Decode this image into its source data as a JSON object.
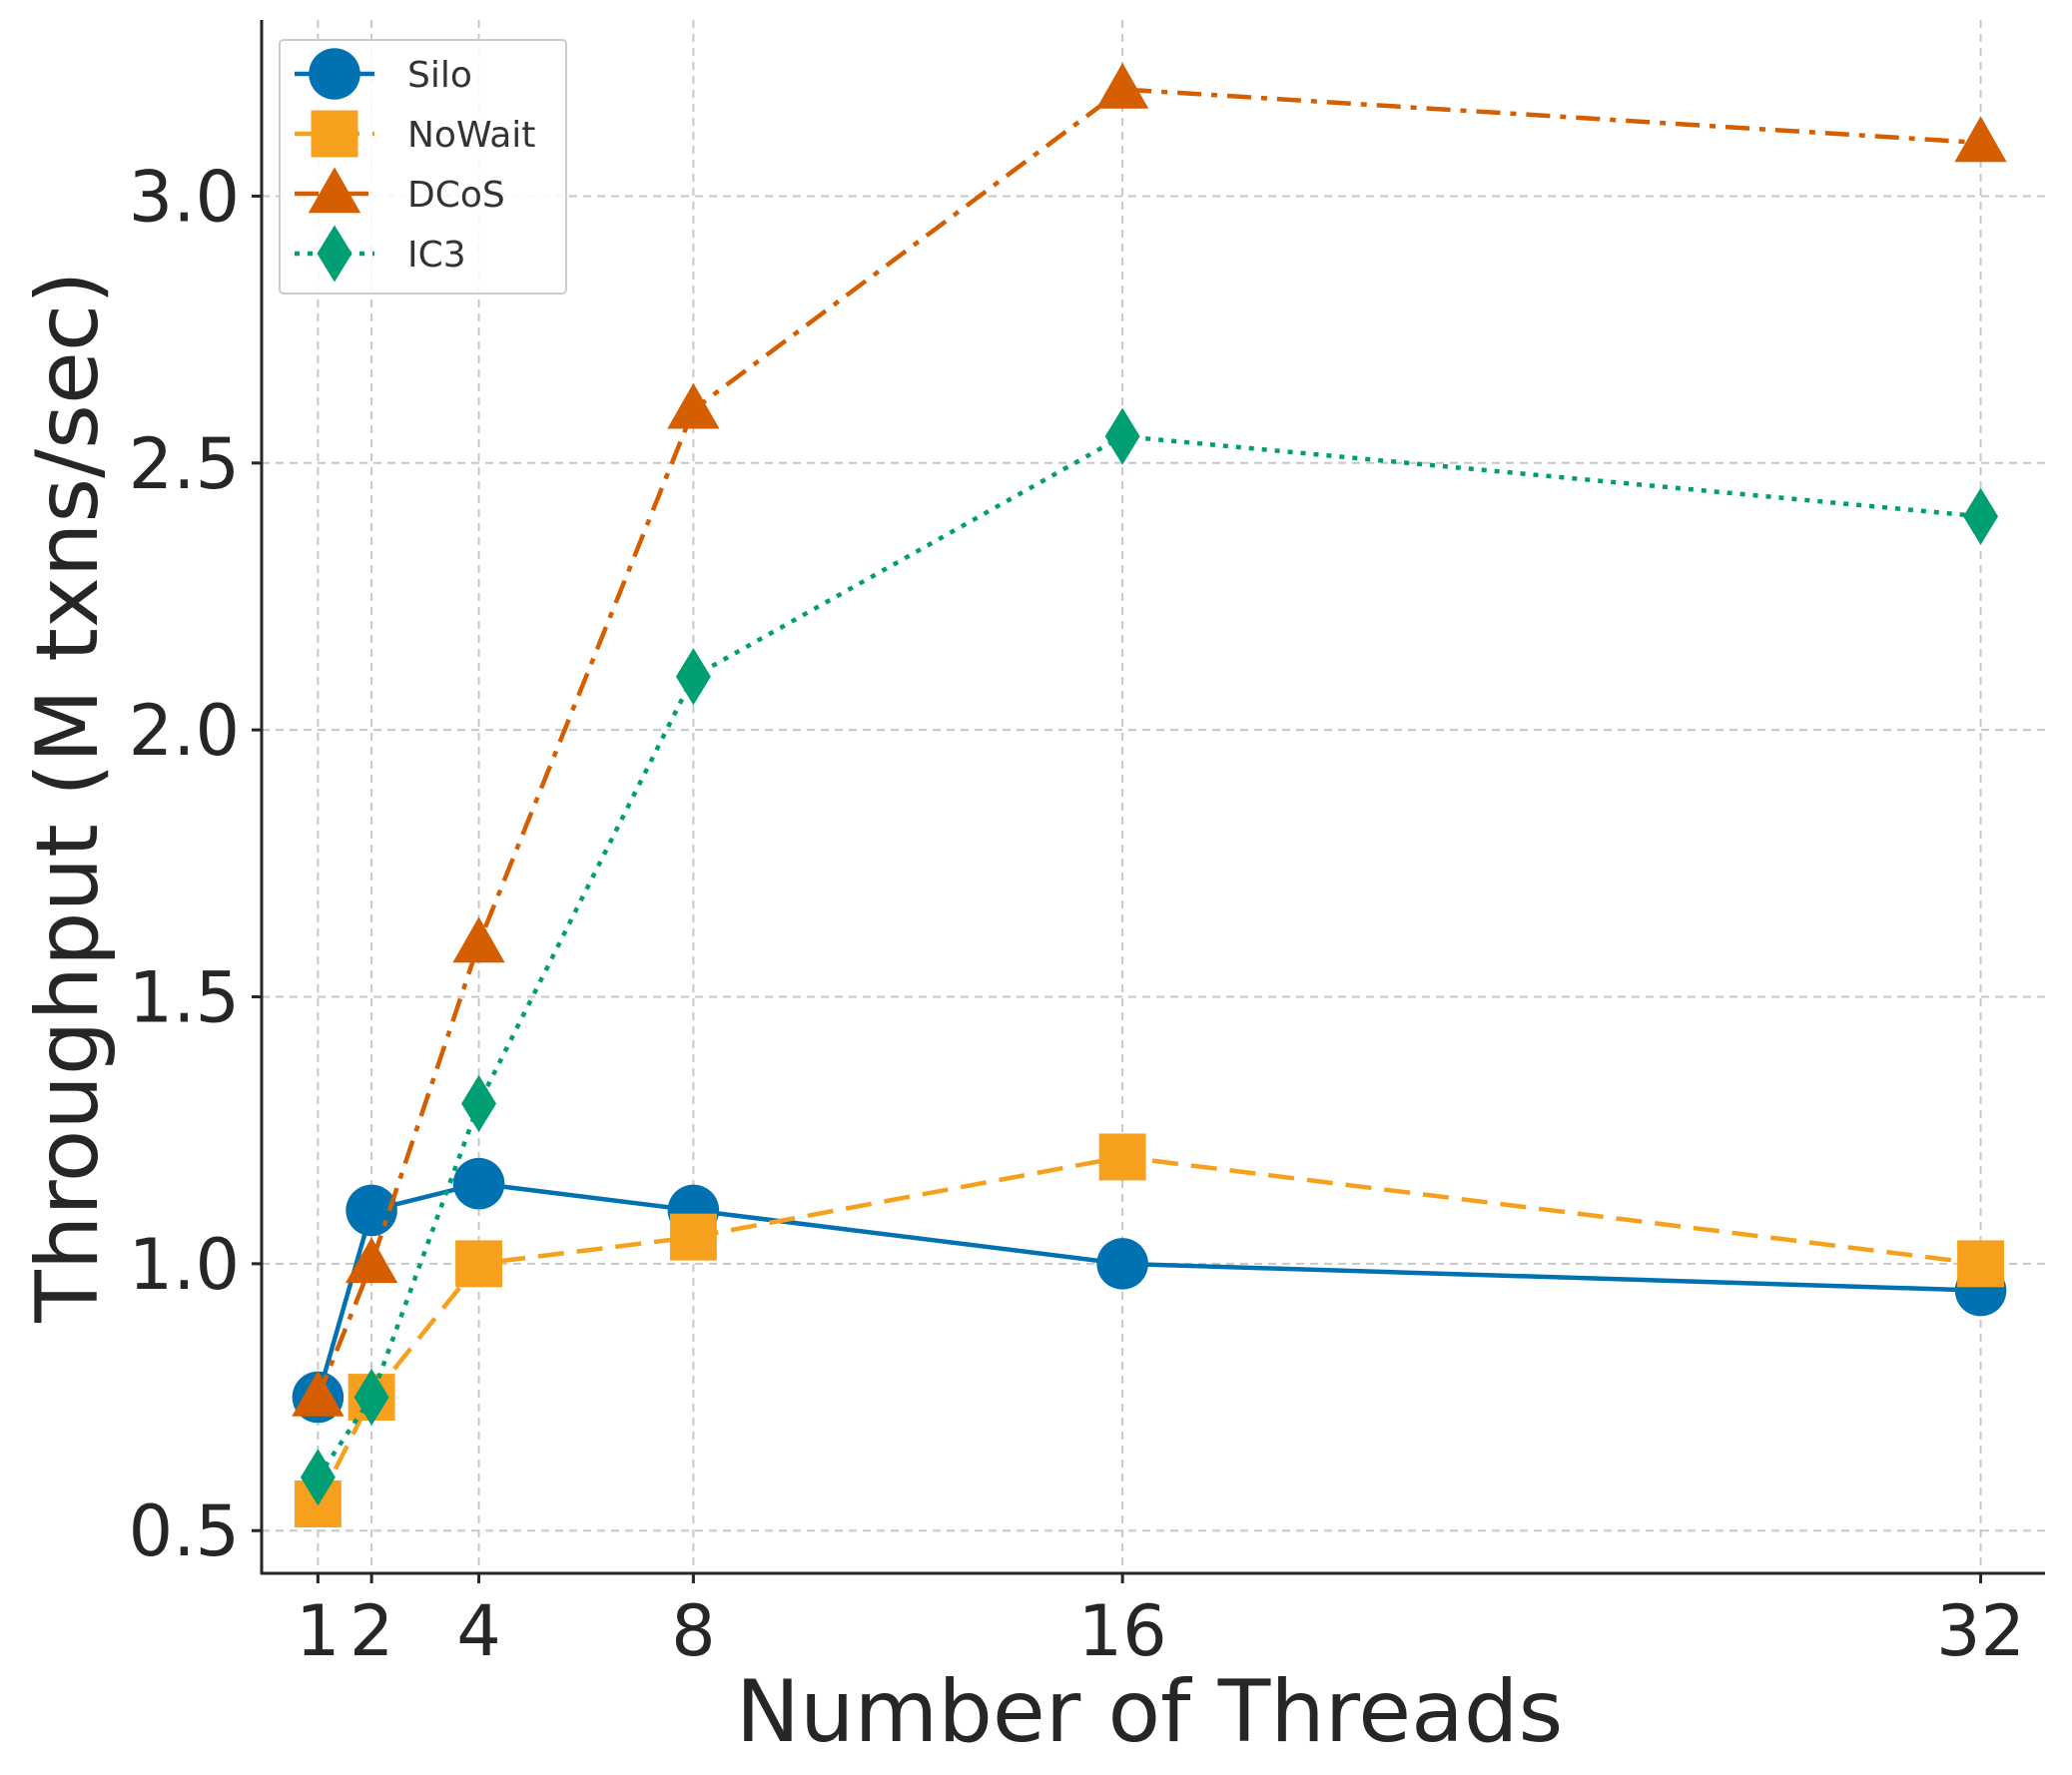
{
  "chart_data": {
    "type": "line",
    "title": "",
    "xlabel": "Number of Threads",
    "ylabel": "Throughput (M txns/sec)",
    "x": [
      1,
      2,
      4,
      8,
      16,
      32
    ],
    "x_tick_labels": [
      "1",
      "2",
      "4",
      "8",
      "16",
      "32"
    ],
    "y_ticks": [
      0.5,
      1.0,
      1.5,
      2.0,
      2.5,
      3.0
    ],
    "y_tick_labels": [
      "0.5",
      "1.0",
      "1.5",
      "2.0",
      "2.5",
      "3.0"
    ],
    "xlim": [
      -0.05,
      33.2
    ],
    "ylim": [
      0.42,
      3.33
    ],
    "grid": true,
    "legend_position": "top-left",
    "series": [
      {
        "name": "Silo",
        "values": [
          0.75,
          1.1,
          1.15,
          1.1,
          1.0,
          0.95
        ],
        "color": "#0072b2",
        "marker": "circle",
        "line_style": "solid"
      },
      {
        "name": "NoWait",
        "values": [
          0.55,
          0.75,
          1.0,
          1.05,
          1.2,
          1.0
        ],
        "color": "#f7a01d",
        "marker": "square",
        "line_style": "dashed"
      },
      {
        "name": "DCoS",
        "values": [
          0.75,
          1.0,
          1.6,
          2.6,
          3.2,
          3.1
        ],
        "color": "#d55e00",
        "marker": "triangle",
        "line_style": "dashdot"
      },
      {
        "name": "IC3",
        "values": [
          0.6,
          0.75,
          1.3,
          2.1,
          2.55,
          2.4
        ],
        "color": "#009e73",
        "marker": "diamond",
        "line_style": "dotted"
      }
    ]
  }
}
